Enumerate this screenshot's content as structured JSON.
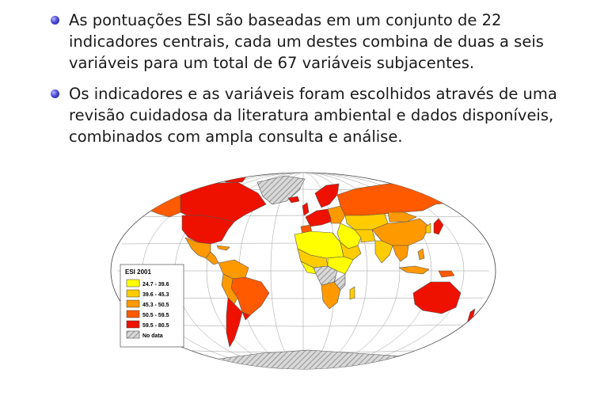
{
  "bullets": [
    {
      "icon": "bullet-sphere-icon",
      "text": "As pontuações ESI são baseadas em um conjunto de 22 indicadores centrais, cada um destes combina de duas a seis variáveis para um total de 67 variáveis subjacentes."
    },
    {
      "icon": "bullet-sphere-icon",
      "text": "Os indicadores e as variáveis foram escolhidos através de uma revisão cuidadosa da literatura ambiental e dados disponíveis, combinados com ampla consulta e análise."
    }
  ],
  "map": {
    "legend": {
      "title": "ESI 2001",
      "items": [
        {
          "label": "24.7 - 39.6",
          "color": "#ffff00"
        },
        {
          "label": "39.6 - 45.3",
          "color": "#ffcc00"
        },
        {
          "label": "45.3 - 50.5",
          "color": "#ff9900"
        },
        {
          "label": "50.5 - 59.5",
          "color": "#ff5a00"
        },
        {
          "label": "59.5 - 80.5",
          "color": "#ee1100"
        },
        {
          "label": "No data",
          "color": "hatched-gray"
        }
      ]
    }
  }
}
